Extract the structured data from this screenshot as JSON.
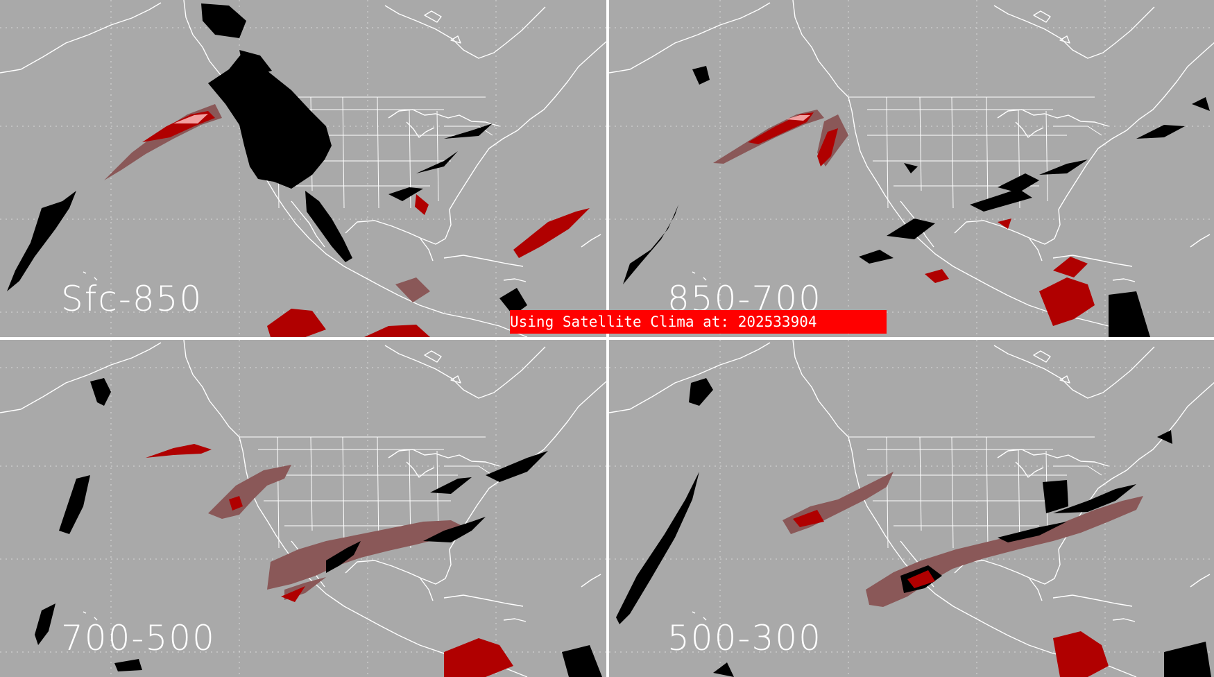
{
  "panels": [
    {
      "label": "Sfc-850"
    },
    {
      "label": "850-700"
    },
    {
      "label": "700-500"
    },
    {
      "label": "500-300"
    }
  ],
  "banner": {
    "text": "Using Satellite Clima at: 202533904"
  },
  "colors": {
    "background": "#a9a9a9",
    "coastline": "#ffffff",
    "graticule": "#d8d8d8",
    "divider": "#ffffff",
    "no_data": "#000000",
    "low_value": "#8a5858",
    "mid_value": "#b00000",
    "high_value": "#f2a0a0",
    "banner": "#ff0000"
  }
}
